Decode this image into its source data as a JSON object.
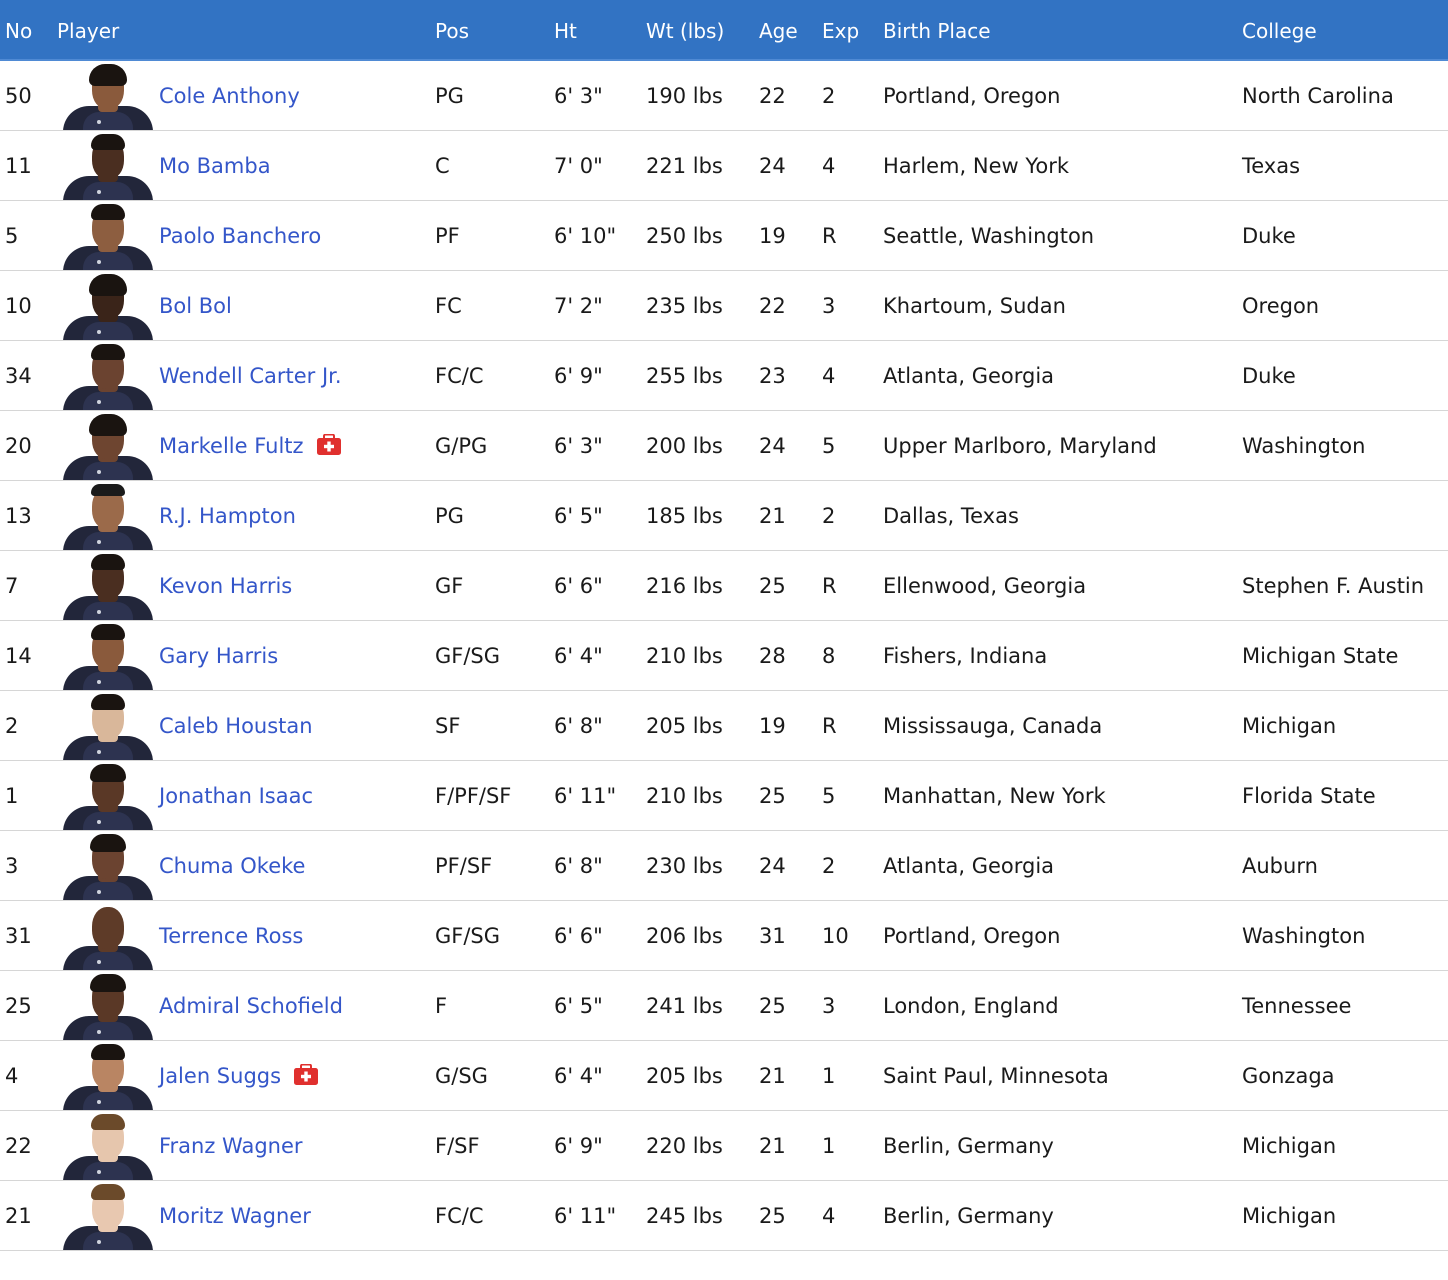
{
  "header": {
    "no": "No",
    "player": "Player",
    "pos": "Pos",
    "ht": "Ht",
    "wt": "Wt (lbs)",
    "age": "Age",
    "exp": "Exp",
    "birth_place": "Birth Place",
    "college": "College"
  },
  "colors": {
    "header_bg": "#3273c3",
    "link": "#3456c9",
    "injury": "#e0302e"
  },
  "rows": [
    {
      "no": "50",
      "name": "Cole Anthony",
      "injured": false,
      "pos": "PG",
      "ht": "6' 3\"",
      "wt": "190 lbs",
      "age": "22",
      "exp": "2",
      "birth_place": "Portland, Oregon",
      "college": "North Carolina",
      "skin": "#8a5a3c",
      "hair": "dreads"
    },
    {
      "no": "11",
      "name": "Mo Bamba",
      "injured": false,
      "pos": "C",
      "ht": "7' 0\"",
      "wt": "221 lbs",
      "age": "24",
      "exp": "4",
      "birth_place": "Harlem, New York",
      "college": "Texas",
      "skin": "#4a2e20",
      "hair": "short"
    },
    {
      "no": "5",
      "name": "Paolo Banchero",
      "injured": false,
      "pos": "PF",
      "ht": "6' 10\"",
      "wt": "250 lbs",
      "age": "19",
      "exp": "R",
      "birth_place": "Seattle, Washington",
      "college": "Duke",
      "skin": "#8d5e40",
      "hair": "short"
    },
    {
      "no": "10",
      "name": "Bol Bol",
      "injured": false,
      "pos": "FC",
      "ht": "7' 2\"",
      "wt": "235 lbs",
      "age": "22",
      "exp": "3",
      "birth_place": "Khartoum, Sudan",
      "college": "Oregon",
      "skin": "#3a2419",
      "hair": "twists"
    },
    {
      "no": "34",
      "name": "Wendell Carter Jr.",
      "injured": false,
      "pos": "FC/C",
      "ht": "6' 9\"",
      "wt": "255 lbs",
      "age": "23",
      "exp": "4",
      "birth_place": "Atlanta, Georgia",
      "college": "Duke",
      "skin": "#6b4330",
      "hair": "short"
    },
    {
      "no": "20",
      "name": "Markelle Fultz",
      "injured": true,
      "pos": "G/PG",
      "ht": "6' 3\"",
      "wt": "200 lbs",
      "age": "24",
      "exp": "5",
      "birth_place": "Upper Marlboro, Maryland",
      "college": "Washington",
      "skin": "#6e4530",
      "hair": "braids"
    },
    {
      "no": "13",
      "name": "R.J. Hampton",
      "injured": false,
      "pos": "PG",
      "ht": "6' 5\"",
      "wt": "185 lbs",
      "age": "21",
      "exp": "2",
      "birth_place": "Dallas, Texas",
      "college": "",
      "skin": "#9b6a4a",
      "hair": "headband"
    },
    {
      "no": "7",
      "name": "Kevon Harris",
      "injured": false,
      "pos": "GF",
      "ht": "6' 6\"",
      "wt": "216 lbs",
      "age": "25",
      "exp": "R",
      "birth_place": "Ellenwood, Georgia",
      "college": "Stephen F. Austin",
      "skin": "#4a2e20",
      "hair": "short"
    },
    {
      "no": "14",
      "name": "Gary Harris",
      "injured": false,
      "pos": "GF/SG",
      "ht": "6' 4\"",
      "wt": "210 lbs",
      "age": "28",
      "exp": "8",
      "birth_place": "Fishers, Indiana",
      "college": "Michigan State",
      "skin": "#8a5a3c",
      "hair": "short"
    },
    {
      "no": "2",
      "name": "Caleb Houstan",
      "injured": false,
      "pos": "SF",
      "ht": "6' 8\"",
      "wt": "205 lbs",
      "age": "19",
      "exp": "R",
      "birth_place": "Mississauga, Canada",
      "college": "Michigan",
      "skin": "#d9b79a",
      "hair": "short"
    },
    {
      "no": "1",
      "name": "Jonathan Isaac",
      "injured": false,
      "pos": "F/PF/SF",
      "ht": "6' 11\"",
      "wt": "210 lbs",
      "age": "25",
      "exp": "5",
      "birth_place": "Manhattan, New York",
      "college": "Florida State",
      "skin": "#5a3826",
      "hair": "curly"
    },
    {
      "no": "3",
      "name": "Chuma Okeke",
      "injured": false,
      "pos": "PF/SF",
      "ht": "6' 8\"",
      "wt": "230 lbs",
      "age": "24",
      "exp": "2",
      "birth_place": "Atlanta, Georgia",
      "college": "Auburn",
      "skin": "#6b4330",
      "hair": "curly"
    },
    {
      "no": "31",
      "name": "Terrence Ross",
      "injured": false,
      "pos": "GF/SG",
      "ht": "6' 6\"",
      "wt": "206 lbs",
      "age": "31",
      "exp": "10",
      "birth_place": "Portland, Oregon",
      "college": "Washington",
      "skin": "#5e3b28",
      "hair": "bald"
    },
    {
      "no": "25",
      "name": "Admiral Schofield",
      "injured": false,
      "pos": "F",
      "ht": "6' 5\"",
      "wt": "241 lbs",
      "age": "25",
      "exp": "3",
      "birth_place": "London, England",
      "college": "Tennessee",
      "skin": "#5a3826",
      "hair": "curly"
    },
    {
      "no": "4",
      "name": "Jalen Suggs",
      "injured": true,
      "pos": "G/SG",
      "ht": "6' 4\"",
      "wt": "205 lbs",
      "age": "21",
      "exp": "1",
      "birth_place": "Saint Paul, Minnesota",
      "college": "Gonzaga",
      "skin": "#b98563",
      "hair": "short"
    },
    {
      "no": "22",
      "name": "Franz Wagner",
      "injured": false,
      "pos": "F/SF",
      "ht": "6' 9\"",
      "wt": "220 lbs",
      "age": "21",
      "exp": "1",
      "birth_place": "Berlin, Germany",
      "college": "Michigan",
      "skin": "#e6c6ad",
      "hair": "light"
    },
    {
      "no": "21",
      "name": "Moritz Wagner",
      "injured": false,
      "pos": "FC/C",
      "ht": "6' 11\"",
      "wt": "245 lbs",
      "age": "25",
      "exp": "4",
      "birth_place": "Berlin, Germany",
      "college": "Michigan",
      "skin": "#e8c8b0",
      "hair": "light"
    }
  ]
}
